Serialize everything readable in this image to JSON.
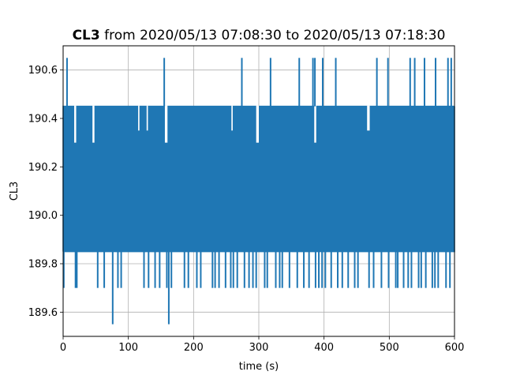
{
  "chart_data": {
    "type": "line",
    "title_variable": "CL3",
    "title_rest": " from 2020/05/13 07:08:30 to 2020/05/13 07:18:30",
    "xlabel": "time (s)",
    "ylabel": "CL3",
    "xlim": [
      0,
      600
    ],
    "ylim": [
      189.5,
      190.7
    ],
    "x_ticks": [
      0,
      100,
      200,
      300,
      400,
      500,
      600
    ],
    "x_tick_labels": [
      "0",
      "100",
      "200",
      "300",
      "400",
      "500",
      "600"
    ],
    "y_ticks": [
      189.6,
      189.8,
      190.0,
      190.2,
      190.4,
      190.6
    ],
    "y_tick_labels": [
      "189.6",
      "189.8",
      "190.0",
      "190.2",
      "190.4",
      "190.6"
    ],
    "grid": true,
    "line_color": "#1f77b4",
    "series": [
      {
        "baseline_low": 189.85,
        "baseline_high": 190.45,
        "sampling_interval_s": 0.5,
        "high_spikes": {
          "value": 190.65,
          "x": [
            6,
            155,
            274,
            318,
            362,
            383,
            386,
            398,
            418,
            481,
            498,
            532,
            539,
            554,
            571,
            590,
            595
          ]
        },
        "low_spikes": {
          "value": 189.7,
          "x": [
            1,
            19,
            21,
            53,
            63,
            84,
            89,
            124,
            131,
            141,
            148,
            159,
            166,
            186,
            192,
            205,
            211,
            229,
            233,
            239,
            249,
            257,
            261,
            267,
            278,
            285,
            291,
            296,
            309,
            313,
            326,
            332,
            336,
            347,
            359,
            369,
            377,
            387,
            392,
            397,
            402,
            411,
            421,
            428,
            437,
            447,
            452,
            469,
            476,
            488,
            499,
            510,
            513,
            522,
            529,
            534,
            545,
            549,
            556,
            566,
            570,
            575,
            587,
            593
          ]
        },
        "deep_spikes": {
          "value": 189.55,
          "x": [
            76,
            162
          ]
        },
        "gaps": [
          {
            "x": [
              17,
              20
            ],
            "low": 189.85,
            "high": 190.3
          },
          {
            "x": [
              45,
              48
            ],
            "low": 189.85,
            "high": 190.3
          },
          {
            "x": [
              115,
              117
            ],
            "low": 189.85,
            "high": 190.35
          },
          {
            "x": [
              128,
              130
            ],
            "low": 189.85,
            "high": 190.35
          },
          {
            "x": [
              156,
              160
            ],
            "low": 189.85,
            "high": 190.3
          },
          {
            "x": [
              258,
              260
            ],
            "low": 189.85,
            "high": 190.35
          },
          {
            "x": [
              296,
              300
            ],
            "low": 189.85,
            "high": 190.3
          },
          {
            "x": [
              385,
              388
            ],
            "low": 189.85,
            "high": 190.3
          },
          {
            "x": [
              466,
              470
            ],
            "low": 189.85,
            "high": 190.35
          }
        ]
      }
    ]
  }
}
